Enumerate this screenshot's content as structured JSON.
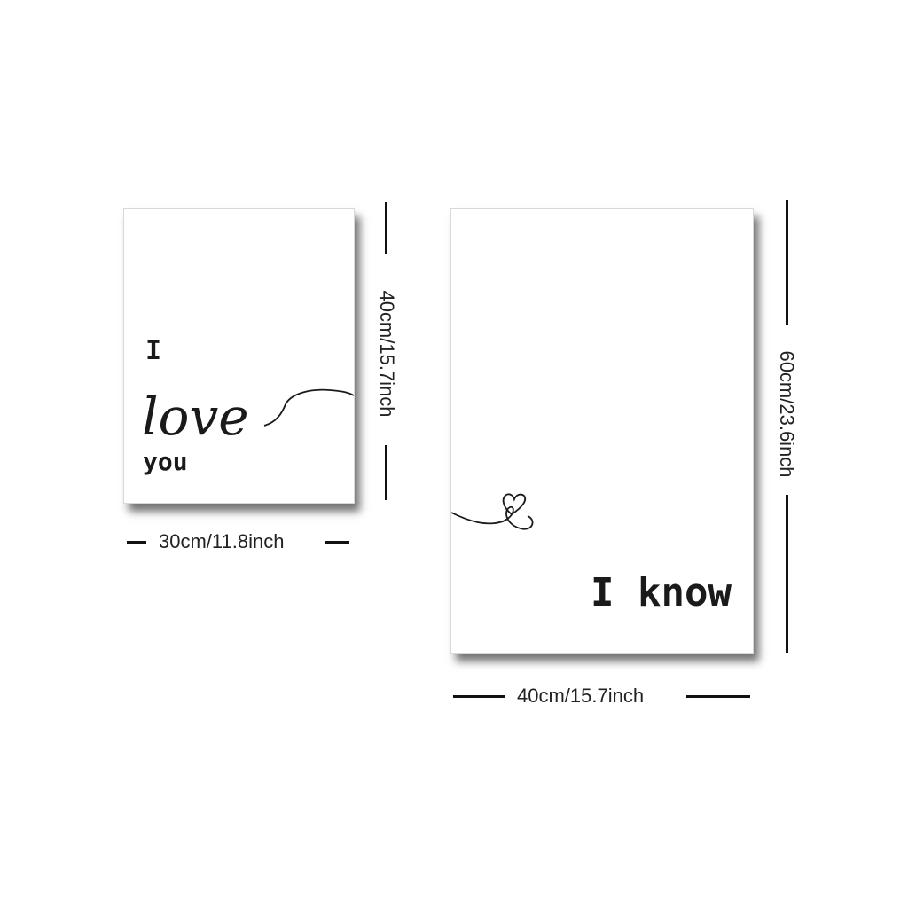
{
  "left_poster": {
    "line1": "I",
    "line2": "love",
    "line3": "you",
    "width_label": "30cm/11.8inch",
    "height_label": "40cm/15.7inch"
  },
  "right_poster": {
    "text": "I know",
    "width_label": "40cm/15.7inch",
    "height_label": "60cm/23.6inch"
  }
}
